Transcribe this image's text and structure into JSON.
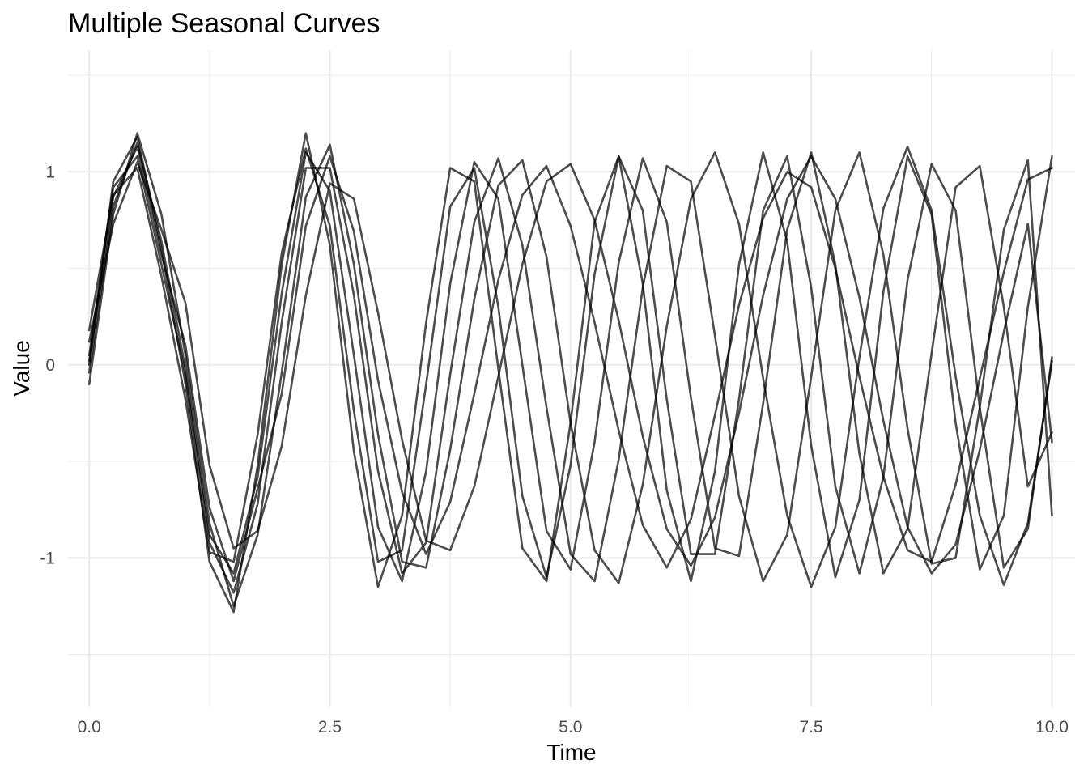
{
  "chart_data": {
    "type": "line",
    "title": "Multiple Seasonal Curves",
    "xlabel": "Time",
    "ylabel": "Value",
    "xlim": [
      -0.22,
      10.24
    ],
    "ylim": [
      -1.77,
      1.63
    ],
    "x_ticks": [
      0.0,
      2.5,
      5.0,
      7.5,
      10.0
    ],
    "x_tick_labels": [
      "0.0",
      "2.5",
      "5.0",
      "7.5",
      "10.0"
    ],
    "y_ticks": [
      -1,
      0,
      1
    ],
    "y_tick_labels": [
      "-1",
      "0",
      "1"
    ],
    "grid": true,
    "legend": "none",
    "line_color": "#000000",
    "line_opacity": 0.7,
    "series": [
      {
        "x": [
          0,
          0.25,
          0.5,
          0.75,
          1,
          1.25,
          1.5,
          1.75,
          2,
          2.25,
          2.5,
          2.75,
          3,
          3.25,
          3.5,
          3.75,
          4,
          4.25,
          4.5,
          4.75,
          5,
          5.25,
          5.5,
          5.75,
          6,
          6.25,
          6.5,
          6.75,
          7,
          7.25,
          7.5,
          7.75,
          8,
          8.25,
          8.5,
          8.75,
          9,
          9.25,
          9.5,
          9.75,
          10
        ],
        "values": [
          0.02,
          0.87,
          1.13,
          0.57,
          0.1,
          -0.74,
          -1.12,
          -0.64,
          -0.15,
          0.72,
          1.08,
          0.69,
          -0.08,
          -0.66,
          -0.98,
          -0.71,
          -0.15,
          0.44,
          0.88,
          1.03,
          0.72,
          0.22,
          -0.34,
          -0.83,
          -1.05,
          -0.8,
          -0.26,
          0.31,
          0.76,
          1.0,
          0.92,
          0.5,
          -0.06,
          -0.58,
          -0.96,
          -1.02,
          -0.62,
          -0.07,
          0.48,
          0.96,
          1.02
        ]
      },
      {
        "x": [
          0,
          0.25,
          0.5,
          0.75,
          1,
          1.25,
          1.5,
          1.75,
          2,
          2.25,
          2.5,
          2.75,
          3,
          3.25,
          3.5,
          3.75,
          4,
          4.25,
          4.5,
          4.75,
          5,
          5.25,
          5.5,
          5.75,
          6,
          6.25,
          6.5,
          6.75,
          7,
          7.25,
          7.5,
          7.75,
          8,
          8.25,
          8.5,
          8.75,
          9,
          9.25,
          9.5,
          9.75,
          10
        ],
        "values": [
          0.12,
          0.73,
          1.05,
          0.7,
          0.32,
          -0.52,
          -0.95,
          -0.86,
          -0.42,
          0.36,
          0.94,
          0.86,
          0.27,
          -0.39,
          -0.91,
          -0.96,
          -0.63,
          -0.06,
          0.52,
          0.95,
          1.04,
          0.75,
          0.23,
          -0.37,
          -0.85,
          -1.04,
          -0.79,
          -0.25,
          0.36,
          0.86,
          1.08,
          0.86,
          0.35,
          -0.29,
          -0.84,
          -1.08,
          -0.93,
          -0.44,
          0.17,
          0.73,
          -0.4
        ]
      },
      {
        "x": [
          0,
          0.25,
          0.5,
          0.75,
          1,
          1.25,
          1.5,
          1.75,
          2,
          2.25,
          2.5,
          2.75,
          3,
          3.25,
          3.5,
          3.75,
          4,
          4.25,
          4.5,
          4.75,
          5,
          5.25,
          5.5,
          5.75,
          6,
          6.25,
          6.5,
          6.75,
          7,
          7.25,
          7.5,
          7.75,
          8,
          8.25,
          8.5,
          8.75,
          9,
          9.25,
          9.5,
          9.75,
          10
        ],
        "values": [
          -0.1,
          0.78,
          1.2,
          0.78,
          0.05,
          -0.82,
          -1.25,
          -0.88,
          -0.04,
          0.87,
          1.14,
          0.52,
          -0.36,
          -1.02,
          -1.05,
          -0.44,
          0.34,
          0.93,
          1.06,
          0.56,
          -0.3,
          -0.96,
          -1.13,
          -0.62,
          0.2,
          0.86,
          1.1,
          0.73,
          -0.07,
          -0.78,
          -1.15,
          -0.84,
          0.04,
          0.81,
          1.13,
          0.8,
          -0.06,
          -0.78,
          -1.14,
          -0.82,
          0.02
        ]
      },
      {
        "x": [
          0,
          0.25,
          0.5,
          0.75,
          1,
          1.25,
          1.5,
          1.75,
          2,
          2.25,
          2.5,
          2.75,
          3,
          3.25,
          3.5,
          3.75,
          4,
          4.25,
          4.5,
          4.75,
          5,
          5.25,
          5.5,
          5.75,
          6,
          6.25,
          6.5,
          6.75,
          7,
          7.25,
          7.5,
          7.75,
          8,
          8.25,
          8.5,
          8.75,
          9,
          9.25,
          9.5,
          9.75,
          10
        ],
        "values": [
          0.05,
          0.92,
          1.08,
          0.52,
          -0.05,
          -0.92,
          -1.18,
          -0.72,
          0.22,
          1.02,
          1.02,
          0.36,
          -0.55,
          -1.08,
          -0.92,
          -0.05,
          0.74,
          1.07,
          0.62,
          -0.22,
          -0.98,
          -1.12,
          -0.49,
          0.4,
          1.03,
          0.95,
          0.15,
          -0.68,
          -1.12,
          -0.88,
          -0.06,
          0.8,
          1.1,
          0.57,
          -0.33,
          -1.03,
          -1.0,
          -0.22,
          0.7,
          1.06,
          -0.78
        ]
      },
      {
        "x": [
          0,
          0.25,
          0.5,
          0.75,
          1,
          1.25,
          1.5,
          1.75,
          2,
          2.25,
          2.5,
          2.75,
          3,
          3.25,
          3.5,
          3.75,
          4,
          4.25,
          4.5,
          4.75,
          5,
          5.25,
          5.5,
          5.75,
          6,
          6.25,
          6.5,
          6.75,
          7,
          7.25,
          7.5,
          7.75,
          8,
          8.25,
          8.5,
          8.75,
          9,
          9.25,
          9.5,
          9.75,
          10
        ],
        "values": [
          -0.04,
          0.82,
          1.15,
          0.64,
          -0.02,
          -0.88,
          -1.08,
          -0.58,
          0.37,
          1.1,
          0.9,
          0.05,
          -0.84,
          -1.12,
          -0.55,
          0.42,
          1.05,
          0.86,
          0.0,
          -0.86,
          -1.06,
          -0.4,
          0.53,
          1.07,
          0.74,
          -0.17,
          -0.95,
          -0.99,
          -0.2,
          0.7,
          1.1,
          0.52,
          -0.46,
          -1.08,
          -0.85,
          0.06,
          0.92,
          1.03,
          0.3,
          -0.63,
          -0.35
        ]
      },
      {
        "x": [
          0,
          0.25,
          0.5,
          0.75,
          1,
          1.25,
          1.5,
          1.75,
          2,
          2.25,
          2.5,
          2.75,
          3,
          3.25,
          3.5,
          3.75,
          4,
          4.25,
          4.5,
          4.75,
          5,
          5.25,
          5.5,
          5.75,
          6,
          6.25,
          6.5,
          6.75,
          7,
          7.25,
          7.5,
          7.75,
          8,
          8.25,
          8.5,
          8.75,
          9,
          9.25,
          9.5,
          9.75,
          10
        ],
        "values": [
          0.18,
          0.88,
          1.02,
          0.46,
          -0.18,
          -0.97,
          -1.02,
          -0.36,
          0.58,
          1.12,
          0.72,
          -0.24,
          -1.02,
          -0.96,
          -0.1,
          0.82,
          1.02,
          0.3,
          -0.68,
          -1.1,
          -0.52,
          0.47,
          1.08,
          0.8,
          -0.18,
          -0.98,
          -0.98,
          -0.18,
          0.8,
          1.08,
          0.4,
          -0.63,
          -1.08,
          -0.58,
          0.44,
          1.04,
          0.8,
          -0.22,
          -1.05,
          -0.85,
          0.04
        ]
      },
      {
        "x": [
          0,
          0.25,
          0.5,
          0.75,
          1,
          1.25,
          1.5,
          1.75,
          2,
          2.25,
          2.5,
          2.75,
          3,
          3.25,
          3.5,
          3.75,
          4,
          4.25,
          4.5,
          4.75,
          5,
          5.25,
          5.5,
          5.75,
          6,
          6.25,
          6.5,
          6.75,
          7,
          7.25,
          7.5,
          7.75,
          8,
          8.25,
          8.5,
          8.75,
          9,
          9.25,
          9.5,
          9.75,
          10
        ],
        "values": [
          0.0,
          0.95,
          1.18,
          0.6,
          -0.1,
          -1.02,
          -1.28,
          -0.52,
          0.52,
          1.2,
          0.62,
          -0.45,
          -1.15,
          -0.78,
          0.22,
          1.02,
          0.95,
          -0.02,
          -0.95,
          -1.12,
          -0.3,
          0.74,
          1.08,
          0.42,
          -0.65,
          -1.12,
          -0.55,
          0.52,
          1.1,
          0.64,
          -0.42,
          -1.1,
          -0.7,
          0.38,
          1.08,
          0.78,
          -0.3,
          -1.06,
          -0.78,
          0.3,
          1.08
        ]
      }
    ]
  }
}
